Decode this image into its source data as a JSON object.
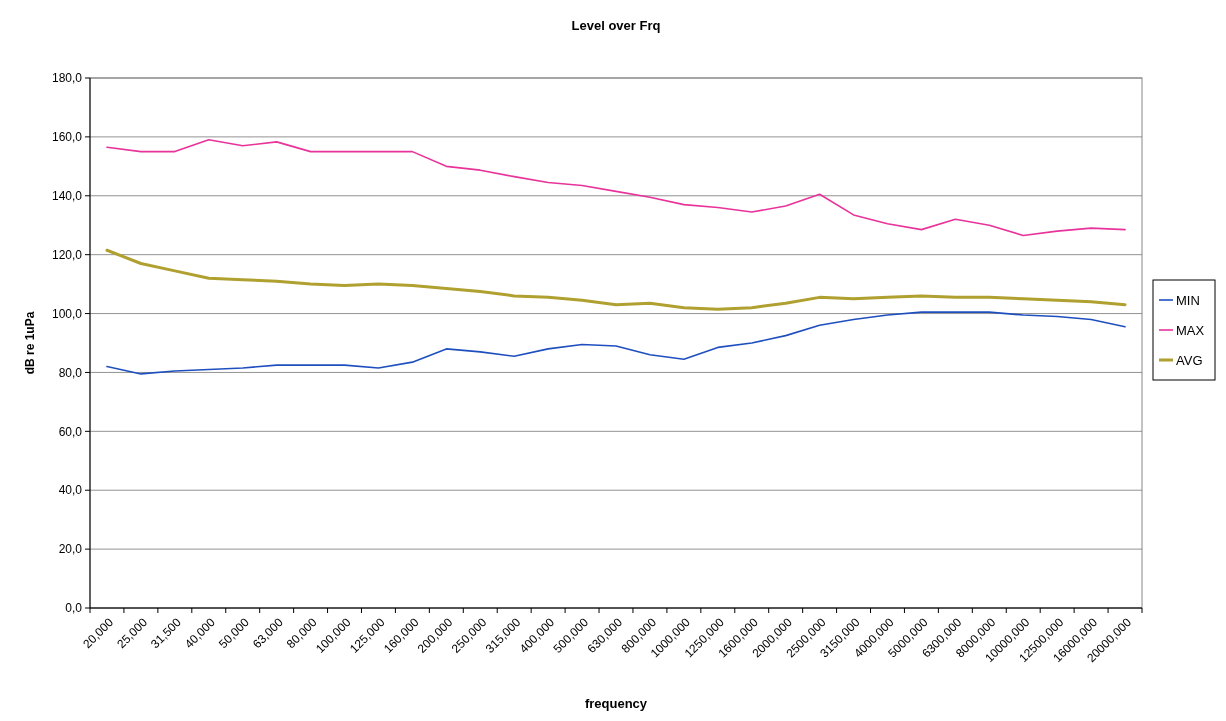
{
  "chart_data": {
    "type": "line",
    "title": "Level over Frq",
    "xlabel": "frequency",
    "ylabel": "dB re 1uPa",
    "categories": [
      "20,000",
      "25,000",
      "31,500",
      "40,000",
      "50,000",
      "63,000",
      "80,000",
      "100,000",
      "125,000",
      "160,000",
      "200,000",
      "250,000",
      "315,000",
      "400,000",
      "500,000",
      "630,000",
      "800,000",
      "1000,000",
      "1250,000",
      "1600,000",
      "2000,000",
      "2500,000",
      "3150,000",
      "4000,000",
      "5000,000",
      "6300,000",
      "8000,000",
      "10000,000",
      "12500,000",
      "16000,000",
      "20000,000"
    ],
    "series": [
      {
        "name": "MIN",
        "color": "#1f4fbf",
        "values": [
          82,
          79.5,
          80.5,
          81,
          81.5,
          82.5,
          82.5,
          82.5,
          81.5,
          83.5,
          88,
          87,
          85.5,
          88,
          89.5,
          89,
          86,
          84.5,
          88.5,
          90,
          92.5,
          96,
          98,
          99.5,
          100.5,
          100.5,
          100.5,
          99.5,
          99,
          98,
          95.5
        ]
      },
      {
        "name": "MAX",
        "color": "#e8339b",
        "values": [
          156.5,
          155,
          155,
          159,
          157,
          158.3,
          155,
          155,
          155,
          155,
          150,
          148.7,
          146.5,
          144.5,
          143.5,
          141.5,
          139.5,
          137,
          136,
          134.5,
          136.5,
          140.5,
          133.5,
          130.5,
          128.5,
          132,
          130,
          126.5,
          128,
          129,
          128.5
        ]
      },
      {
        "name": "AVG",
        "color": "#b0a030",
        "values": [
          121.5,
          117,
          114.5,
          112,
          111.5,
          111,
          110,
          109.5,
          110,
          109.5,
          108.5,
          107.5,
          106,
          105.5,
          104.5,
          103,
          103.5,
          102,
          101.5,
          102,
          103.5,
          105.5,
          105,
          105.5,
          106,
          105.5,
          105.5,
          105,
          104.5,
          104,
          103
        ]
      }
    ],
    "ylim": [
      0,
      180
    ],
    "yticks": [
      {
        "value": 0,
        "label": "0,0"
      },
      {
        "value": 20,
        "label": "20,0"
      },
      {
        "value": 40,
        "label": "40,0"
      },
      {
        "value": 60,
        "label": "60,0"
      },
      {
        "value": 80,
        "label": "80,0"
      },
      {
        "value": 100,
        "label": "100,0"
      },
      {
        "value": 120,
        "label": "120,0"
      },
      {
        "value": 140,
        "label": "140,0"
      },
      {
        "value": 160,
        "label": "160,0"
      },
      {
        "value": 180,
        "label": "180,0"
      }
    ],
    "grid": "y",
    "legend": "right",
    "marker": "none",
    "line_style": "solid"
  }
}
